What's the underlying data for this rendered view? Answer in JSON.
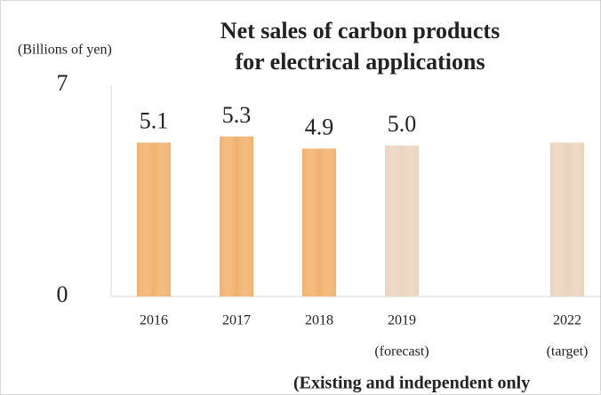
{
  "chart_data": {
    "type": "bar",
    "title": [
      "Net sales of carbon products",
      "for electrical applications"
    ],
    "y_axis_label": "(Billions of yen)",
    "categories": [
      "2016",
      "2017",
      "2018",
      "2019",
      null,
      "2022"
    ],
    "category_notes": [
      null,
      null,
      null,
      "(forecast)",
      null,
      "(target)"
    ],
    "values": [
      5.1,
      5.3,
      4.9,
      5.0,
      null,
      5.1
    ],
    "value_labels": [
      "5.1",
      "5.3",
      "4.9",
      "5.0",
      null,
      null
    ],
    "colors": [
      "#f2b06a",
      "#f2b06a",
      "#f2b06a",
      "#ead3bd",
      null,
      "#ead3bd"
    ],
    "ylim": [
      0,
      7
    ],
    "yticks": [
      0,
      7
    ],
    "grid": false,
    "footnote": "(Existing and independent only"
  }
}
